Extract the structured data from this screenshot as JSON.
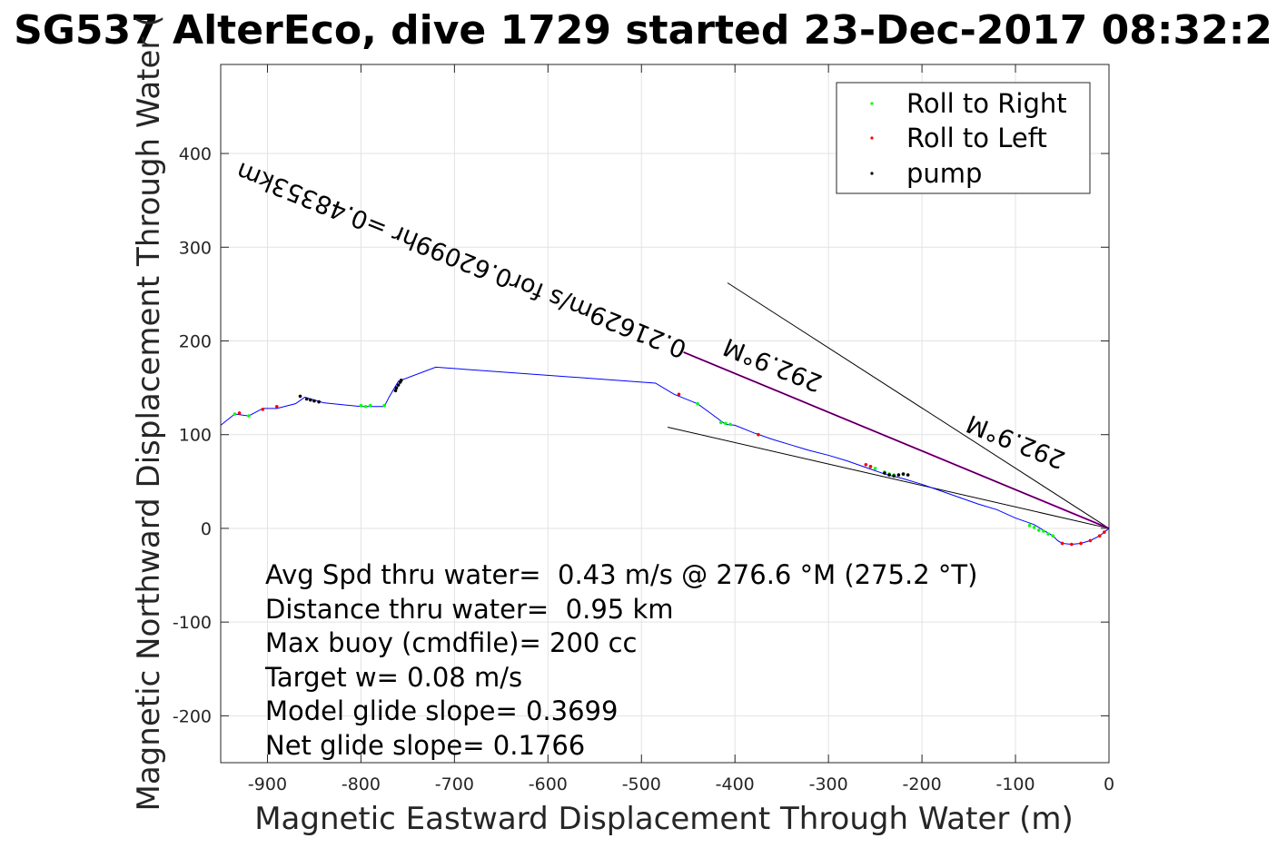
{
  "chart_data": {
    "type": "line",
    "title": "SG537 AlterEco, dive 1729 started 23-Dec-2017 08:32:2",
    "xlabel": "Magnetic Eastward Displacement Through Water (m)",
    "ylabel": "Magnetic Northward Displacement Through Water (",
    "xlim": [
      -950,
      0
    ],
    "ylim": [
      -250,
      495
    ],
    "xticks": [
      -900,
      -800,
      -700,
      -600,
      -500,
      -400,
      -300,
      -200,
      -100,
      0
    ],
    "yticks": [
      -200,
      -100,
      0,
      100,
      200,
      300,
      400
    ],
    "grid": true,
    "legend_position": "top-right",
    "series": [
      {
        "name": "track",
        "color": "#0000ff",
        "x": [
          -950,
          -935,
          -920,
          -905,
          -890,
          -870,
          -860,
          -840,
          -800,
          -775,
          -770,
          -760,
          -720,
          -485,
          -465,
          -440,
          -425,
          -410,
          -400,
          -380,
          -360,
          -340,
          -320,
          -300,
          -280,
          -260,
          -240,
          -220,
          -200,
          -180,
          -160,
          -140,
          -120,
          -100,
          -80,
          -70,
          -60,
          -55,
          -50,
          -40,
          -30,
          -20,
          -10,
          -5,
          0
        ],
        "y": [
          110,
          122,
          120,
          128,
          128,
          133,
          140,
          134,
          130,
          130,
          140,
          157,
          172,
          155,
          143,
          133,
          122,
          111,
          110,
          102,
          95,
          89,
          83,
          78,
          72,
          65,
          58,
          53,
          47,
          40,
          33,
          26,
          20,
          11,
          4,
          -2,
          -8,
          -13,
          -16,
          -17,
          -16,
          -13,
          -8,
          -4,
          0
        ]
      },
      {
        "name": "Roll to Right",
        "color": "#00ff00",
        "x": [
          -935,
          -920,
          -800,
          -795,
          -790,
          -775,
          -440,
          -415,
          -410,
          -405,
          -255,
          -250,
          -240,
          -235,
          -230,
          -85,
          -80,
          -75,
          -70,
          -65,
          -60
        ],
        "y": [
          122,
          120,
          131,
          130,
          131,
          131,
          133,
          113,
          112,
          111,
          66,
          64,
          60,
          58,
          57,
          3,
          1,
          -2,
          -3,
          -6,
          -8
        ]
      },
      {
        "name": "Roll to Left",
        "color": "#ff0000",
        "x": [
          -930,
          -905,
          -890,
          -460,
          -375,
          -260,
          -255,
          -50,
          -40,
          -30,
          -20,
          -10,
          -5
        ],
        "y": [
          123,
          127,
          130,
          143,
          100,
          68,
          66,
          -16,
          -17,
          -16,
          -13,
          -8,
          -4
        ]
      },
      {
        "name": "pump",
        "color": "#000000",
        "x": [
          -865,
          -858,
          -854,
          -850,
          -845,
          -763,
          -762,
          -760,
          -758,
          -757,
          -240,
          -235,
          -230,
          -225,
          -220,
          -215
        ],
        "y": [
          141,
          138,
          137,
          136,
          135,
          147,
          150,
          153,
          156,
          158,
          59,
          57,
          56,
          57,
          58,
          57
        ]
      }
    ],
    "line_segments": [
      {
        "name": "bracket-upper",
        "color": "#000000",
        "x": [
          -408,
          0
        ],
        "y": [
          262,
          0
        ]
      },
      {
        "name": "bracket-lower",
        "color": "#000000",
        "x": [
          -472,
          0
        ],
        "y": [
          108,
          0
        ]
      },
      {
        "name": "heading-line",
        "color": "#ff00ff",
        "x": [
          -455,
          0
        ],
        "y": [
          188,
          0
        ]
      },
      {
        "name": "heading-line-overlay",
        "color": "#000000",
        "x": [
          -455,
          0
        ],
        "y": [
          188,
          0
        ]
      }
    ],
    "annotations": [
      {
        "text": "0.21629m/s for0.62099hr =0.48353km",
        "x": -450,
        "y": 198,
        "angle_deg": 202
      },
      {
        "text": "292.9°M",
        "x": -305,
        "y": 162,
        "angle_deg": 202
      },
      {
        "text": "292.9°M",
        "x": -45,
        "y": 80,
        "angle_deg": 202
      }
    ],
    "stats": [
      "Avg Spd thru water=  0.43 m/s @ 276.6 °M (275.2 °T)",
      "Distance thru water=  0.95 km",
      "Max buoy (cmdfile)= 200 cc",
      "Target w= 0.08 m/s",
      "Model glide slope= 0.3699",
      "Net glide slope= 0.1766"
    ]
  }
}
